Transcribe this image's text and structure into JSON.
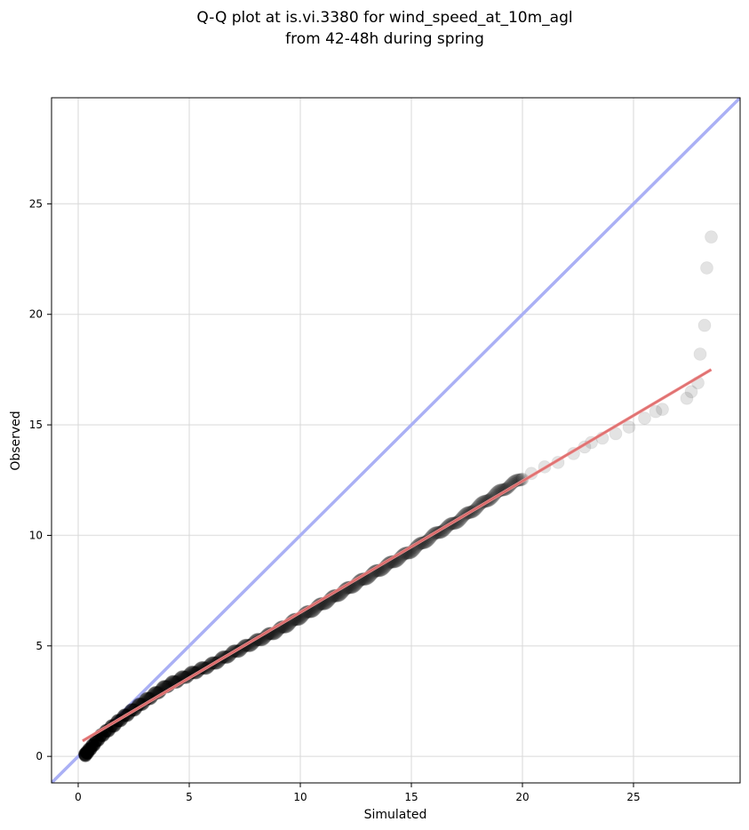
{
  "chart_data": {
    "type": "scatter",
    "title_line1": "Q-Q plot at is.vi.3380 for wind_speed_at_10m_agl",
    "title_line2": "from 42-48h during spring",
    "xlabel": "Simulated",
    "ylabel": "Observed",
    "xlim": [
      -1.2,
      29.8
    ],
    "ylim": [
      -1.2,
      29.8
    ],
    "xticks": [
      0,
      5,
      10,
      15,
      20,
      25
    ],
    "yticks": [
      0,
      5,
      10,
      15,
      20,
      25
    ],
    "grid": true,
    "reference_line": {
      "name": "1:1",
      "x": [
        -1.2,
        29.8
      ],
      "y": [
        -1.2,
        29.8
      ],
      "color": "#aab0f5"
    },
    "fit_line": {
      "x": [
        0.2,
        28.5
      ],
      "y": [
        0.7,
        17.5
      ],
      "color": "#f4a2a2"
    },
    "qq_knots": [
      [
        0.3,
        0.05
      ],
      [
        0.5,
        0.3
      ],
      [
        1.0,
        0.9
      ],
      [
        2.0,
        1.75
      ],
      [
        3.0,
        2.5
      ],
      [
        4.0,
        3.2
      ],
      [
        5.0,
        3.7
      ],
      [
        6.0,
        4.15
      ],
      [
        7.0,
        4.7
      ],
      [
        8.0,
        5.2
      ],
      [
        9.0,
        5.7
      ],
      [
        10.0,
        6.3
      ],
      [
        11.0,
        6.9
      ],
      [
        12.0,
        7.5
      ],
      [
        13.0,
        8.1
      ],
      [
        14.0,
        8.7
      ],
      [
        15.0,
        9.3
      ],
      [
        16.0,
        10.0
      ],
      [
        17.0,
        10.6
      ],
      [
        18.0,
        11.3
      ],
      [
        19.0,
        12.0
      ],
      [
        20.0,
        12.6
      ],
      [
        21.0,
        13.2
      ],
      [
        22.0,
        13.7
      ],
      [
        23.0,
        14.2
      ],
      [
        24.0,
        14.6
      ],
      [
        25.0,
        15.0
      ]
    ],
    "tail_points": [
      [
        20.4,
        12.8
      ],
      [
        21.0,
        13.1
      ],
      [
        21.6,
        13.3
      ],
      [
        22.3,
        13.7
      ],
      [
        22.8,
        14.0
      ],
      [
        23.1,
        14.2
      ],
      [
        23.6,
        14.4
      ],
      [
        24.2,
        14.6
      ],
      [
        24.8,
        14.9
      ],
      [
        25.5,
        15.3
      ],
      [
        26.0,
        15.6
      ],
      [
        26.3,
        15.7
      ],
      [
        27.4,
        16.2
      ],
      [
        27.6,
        16.5
      ],
      [
        27.9,
        16.9
      ],
      [
        28.0,
        18.2
      ],
      [
        28.2,
        19.5
      ],
      [
        28.3,
        22.1
      ],
      [
        28.5,
        23.5
      ]
    ],
    "point_count": 620
  }
}
